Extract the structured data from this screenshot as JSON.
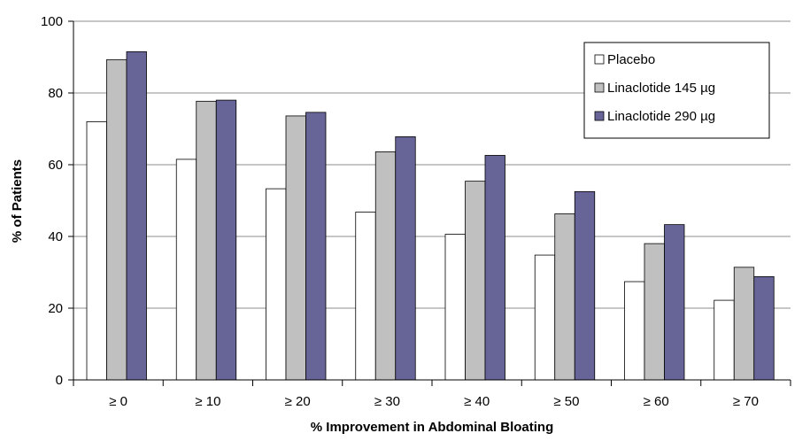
{
  "chart_data": {
    "type": "bar",
    "categories": [
      "≥ 0",
      "≥ 10",
      "≥ 20",
      "≥ 30",
      "≥ 40",
      "≥ 50",
      "≥ 60",
      "≥ 70"
    ],
    "series": [
      {
        "name": "Placebo",
        "values": [
          72,
          61.5,
          53.3,
          46.8,
          40.6,
          34.8,
          27.4,
          22.2
        ],
        "color": "#ffffff"
      },
      {
        "name": "Linaclotide 145 µg",
        "values": [
          89.3,
          77.7,
          73.6,
          63.6,
          55.4,
          46.3,
          38,
          31.4
        ],
        "color": "#c0c0c0"
      },
      {
        "name": "Linaclotide 290 µg",
        "values": [
          91.5,
          78,
          74.6,
          67.8,
          62.6,
          52.5,
          43.3,
          28.8
        ],
        "color": "#676497"
      }
    ],
    "title": "",
    "xlabel": "% Improvement in Abdominal Bloating",
    "ylabel": "% of Patients",
    "ylim": [
      0,
      100
    ],
    "yticks": [
      "0",
      "20",
      "40",
      "60",
      "80",
      "100"
    ],
    "grid": true,
    "legend_position": "top-right"
  }
}
